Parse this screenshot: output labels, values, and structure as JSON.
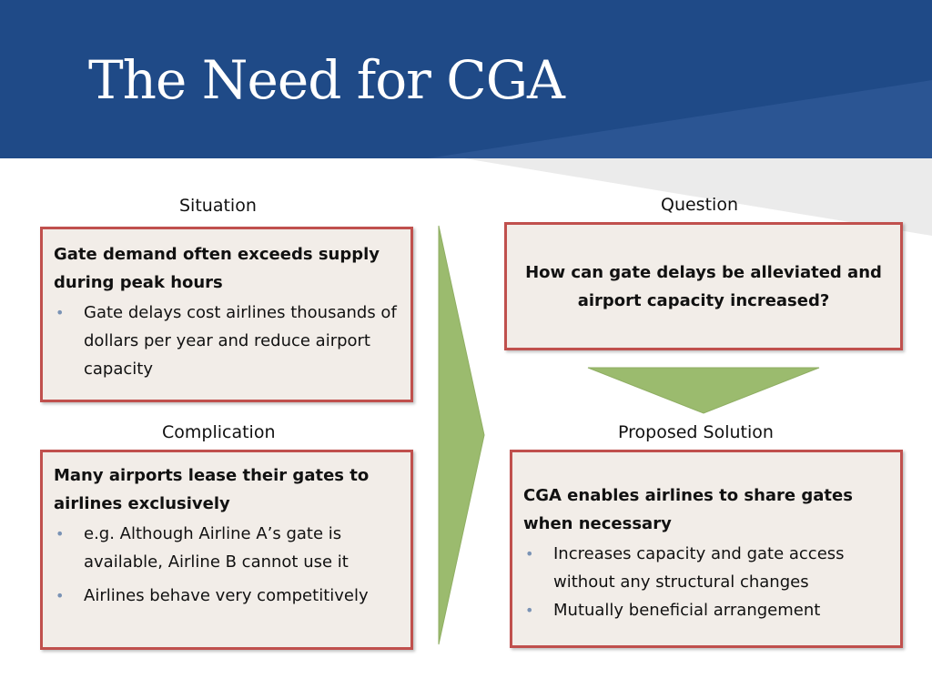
{
  "slide": {
    "title": "The Need for CGA"
  },
  "situation": {
    "label": "Situation",
    "headline": "Gate demand often exceeds supply during peak hours",
    "bullets": [
      "Gate delays cost airlines thousands of dollars per year and reduce airport capacity"
    ]
  },
  "complication": {
    "label": "Complication",
    "headline": "Many airports lease their gates to airlines exclusively",
    "bullets": [
      "e.g. Although Airline A’s gate is available, Airline B cannot use it",
      "Airlines behave very competitively"
    ]
  },
  "question": {
    "label": "Question",
    "text": "How can gate delays be alleviated and airport capacity increased?"
  },
  "solution": {
    "label": "Proposed Solution",
    "headline": "CGA enables airlines to share gates when necessary",
    "bullets": [
      "Increases capacity and gate access without any structural changes",
      "Mutually beneficial arrangement"
    ]
  },
  "colors": {
    "header_blue": "#1f4a87",
    "box_border": "#c0504d",
    "box_fill": "#f2ede8",
    "arrow_green": "#9bbb6e",
    "bullet_blue": "#7a93b5"
  },
  "icons": {
    "bullet": "•"
  }
}
